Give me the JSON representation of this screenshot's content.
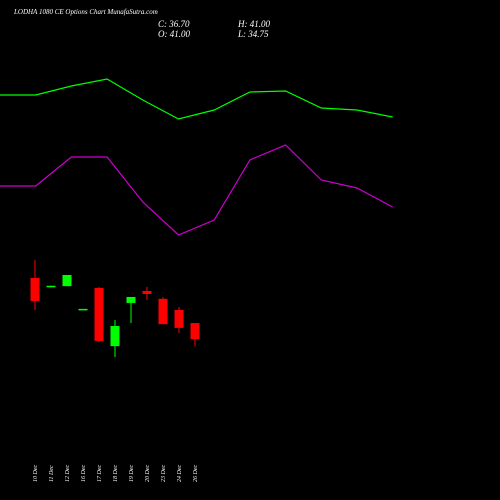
{
  "header": {
    "title": "LODHA 1080 CE Options Chart MunafaSutra.com",
    "close_label": "C: 36.70",
    "open_label": "O: 41.00",
    "high_label": "H: 41.00",
    "low_label": "L: 34.75"
  },
  "chart_data": [
    {
      "type": "line",
      "ylim": [
        0,
        100
      ],
      "series": [
        {
          "name": "upper",
          "color": "#00ff00",
          "values": [
            82.5,
            82.5,
            87,
            90.5,
            80,
            70.5,
            75,
            84,
            84.5,
            76,
            75,
            71.5
          ]
        },
        {
          "name": "lower",
          "color": "#cc00cc",
          "values": [
            37,
            37,
            51.5,
            51.5,
            29,
            12.5,
            20,
            50,
            57.5,
            40,
            36,
            26.5
          ]
        }
      ]
    },
    {
      "type": "candlestick",
      "ylim": [
        28.4,
        60.6
      ],
      "up_color": "#00ff00",
      "down_color": "#ff0000",
      "categories": [
        "10 Dec",
        "11 Dec",
        "12 Dec",
        "16 Dec",
        "17 Dec",
        "18 Dec",
        "19 Dec",
        "20 Dec",
        "23 Dec",
        "24 Dec",
        "26 Dec"
      ],
      "open": [
        53.1,
        50.9,
        50.9,
        44.8,
        50.4,
        34.8,
        46.4,
        49.6,
        47.5,
        44.5,
        41
      ],
      "high": [
        57.9,
        51.0,
        53.9,
        44.8,
        50.7,
        41.8,
        48.0,
        50.7,
        48.0,
        45.3,
        41
      ],
      "low": [
        44.5,
        50.9,
        50.9,
        44.8,
        35.9,
        31.9,
        41.0,
        47.2,
        40.7,
        38.3,
        34.75
      ],
      "close": [
        46.9,
        51.0,
        53.9,
        44.8,
        36.2,
        40.2,
        48.0,
        48.8,
        40.7,
        39.7,
        36.7
      ]
    }
  ]
}
